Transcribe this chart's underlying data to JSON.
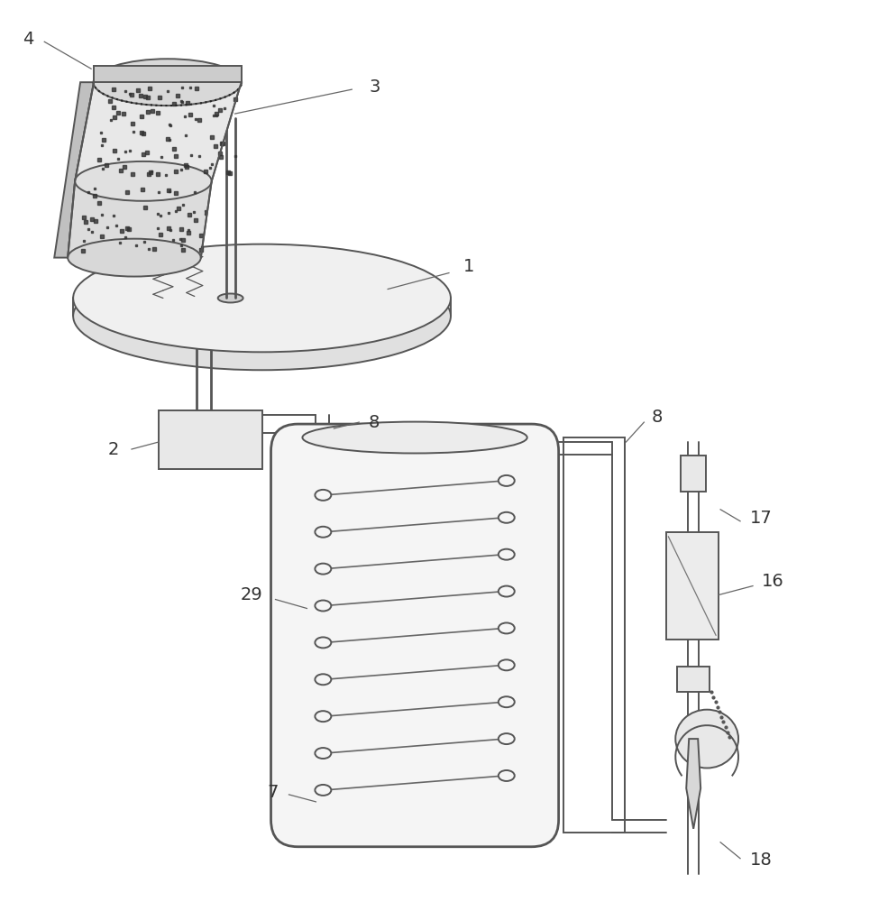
{
  "background_color": "#ffffff",
  "line_color": "#555555",
  "label_color": "#333333",
  "label_fontsize": 14,
  "fig_width": 9.75,
  "fig_height": 10.0,
  "dpi": 100
}
